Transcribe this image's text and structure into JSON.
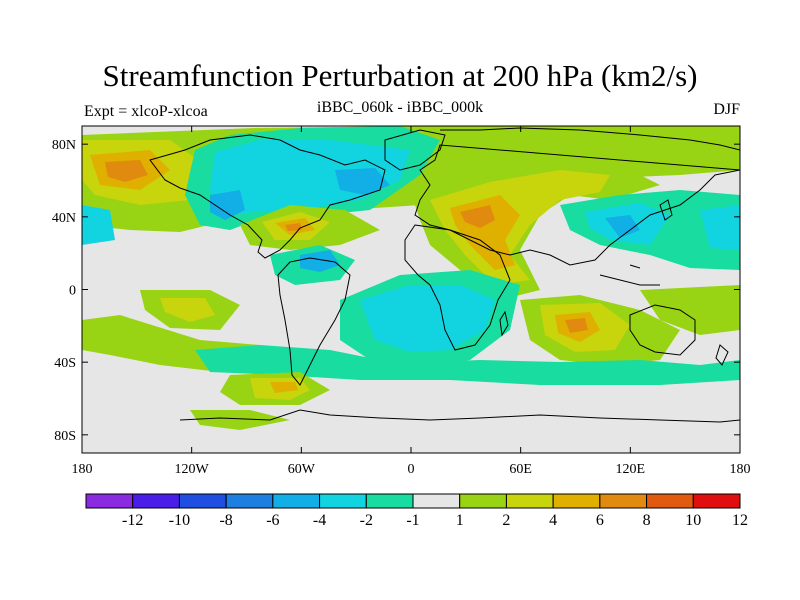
{
  "title": "Streamfunction Perturbation at 200 hPa (km2/s)",
  "subtitle_left": "Expt = xlcoP-xlcoa",
  "subtitle_center": "iBBC_060k - iBBC_000k",
  "subtitle_right": "DJF",
  "chart_data": {
    "type": "heatmap",
    "title": "Streamfunction Perturbation at 200 hPa (km2/s)",
    "lon_ticks": [
      "180",
      "120W",
      "60W",
      "0",
      "60E",
      "120E",
      "180"
    ],
    "lat_ticks": [
      "80N",
      "40N",
      "0",
      "40S",
      "80S"
    ],
    "colorbar_labels": [
      "-12",
      "-10",
      "-8",
      "-6",
      "-4",
      "-2",
      "-1",
      "1",
      "2",
      "4",
      "6",
      "8",
      "10",
      "12"
    ],
    "colors": [
      "#8a2be2",
      "#4a1ee8",
      "#1f4fe0",
      "#1e7fe0",
      "#12aee6",
      "#12d4e0",
      "#18dca0",
      "#e6e6e6",
      "#98d414",
      "#c8d40c",
      "#e0b000",
      "#e08a10",
      "#e05a10",
      "#e00e0e"
    ],
    "lat_range": [
      -90,
      90
    ],
    "lon_range": [
      -180,
      180
    ]
  }
}
